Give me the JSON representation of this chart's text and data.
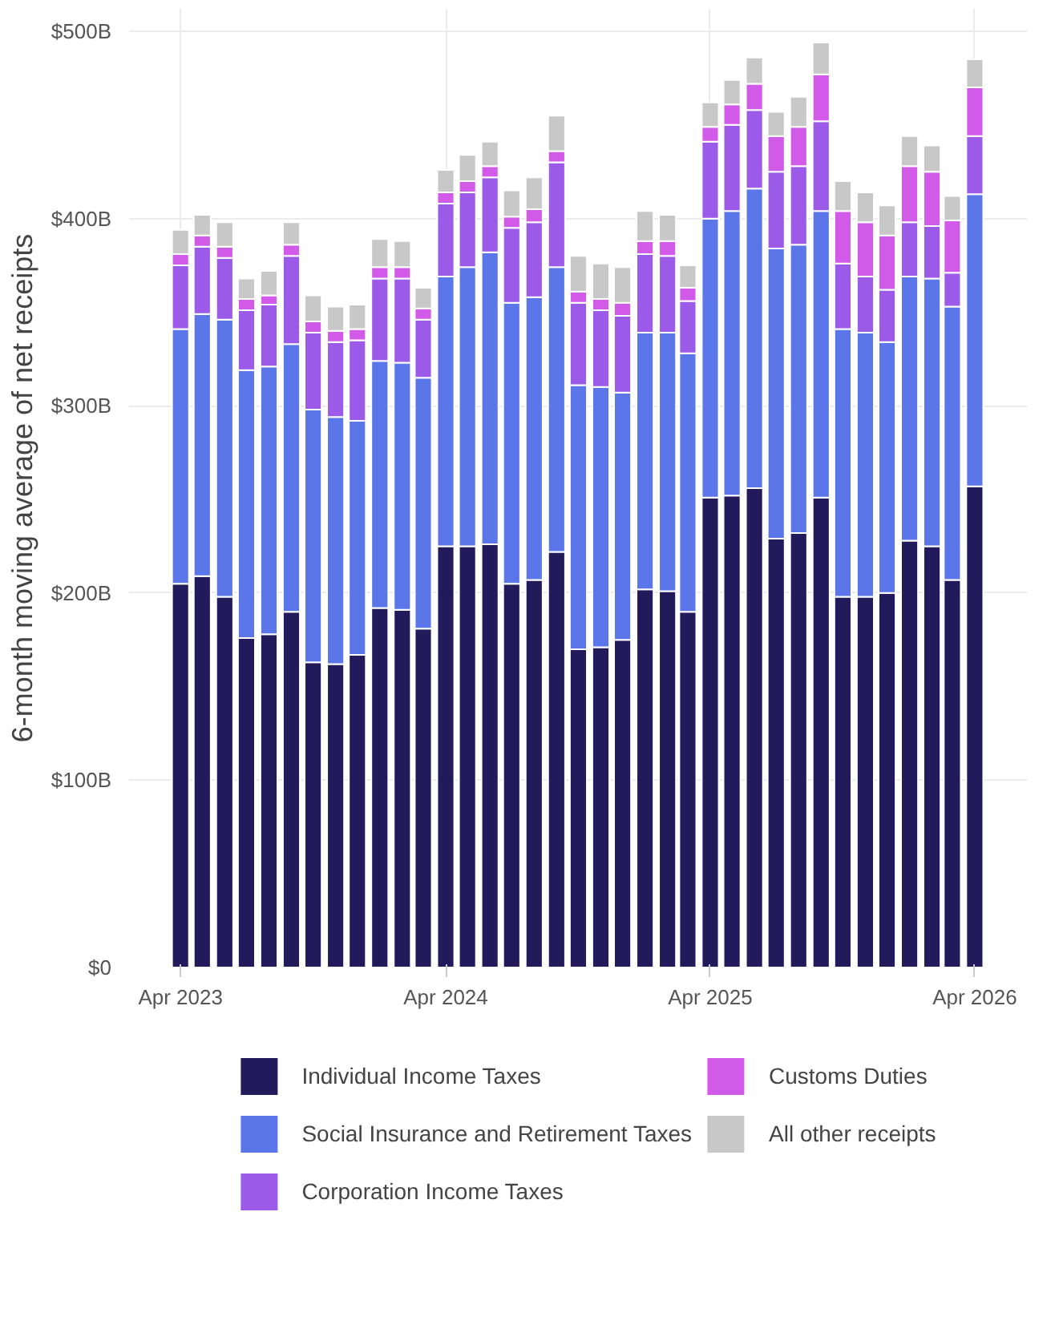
{
  "chart_data": {
    "type": "bar",
    "stacked": true,
    "ylabel": "6-month moving average of net receipts",
    "x": [
      "2023-04",
      "2023-05",
      "2023-06",
      "2023-07",
      "2023-08",
      "2023-09",
      "2023-10",
      "2023-11",
      "2023-12",
      "2024-01",
      "2024-02",
      "2024-03",
      "2024-04",
      "2024-05",
      "2024-06",
      "2024-07",
      "2024-08",
      "2024-09",
      "2024-10",
      "2024-11",
      "2024-12",
      "2025-01",
      "2025-02",
      "2025-03",
      "2025-04",
      "2025-05",
      "2025-06",
      "2025-07",
      "2025-08",
      "2025-09",
      "2025-10",
      "2025-11",
      "2025-12",
      "2026-01",
      "2026-02",
      "2026-03",
      "2026-04"
    ],
    "xlim": [
      "2023-01-20",
      "2026-06-12"
    ],
    "xticks": [
      {
        "value": "2023-04",
        "label": "Apr 2023"
      },
      {
        "value": "2024-04",
        "label": "Apr 2024"
      },
      {
        "value": "2025-04",
        "label": "Apr 2025"
      },
      {
        "value": "2026-04",
        "label": "Apr 2026"
      }
    ],
    "ylim": [
      0,
      512
    ],
    "yticks": [
      {
        "value": 0,
        "label": "$0"
      },
      {
        "value": 100,
        "label": "$100B"
      },
      {
        "value": 200,
        "label": "$200B"
      },
      {
        "value": 300,
        "label": "$300B"
      },
      {
        "value": 400,
        "label": "$400B"
      },
      {
        "value": 500,
        "label": "$500B"
      }
    ],
    "grid": true,
    "legend": "bottom",
    "series": [
      {
        "name": "Individual Income Taxes",
        "color": "#231a5c",
        "values": [
          205,
          209,
          198,
          176,
          178,
          190,
          163,
          162,
          167,
          192,
          191,
          181,
          225,
          225,
          226,
          205,
          207,
          222,
          170,
          171,
          175,
          202,
          201,
          190,
          251,
          252,
          256,
          229,
          232,
          251,
          198,
          198,
          200,
          228,
          225,
          207,
          257
        ]
      },
      {
        "name": "Social Insurance and Retirement Taxes",
        "color": "#5b76e8",
        "values": [
          136,
          140,
          148,
          143,
          143,
          143,
          135,
          132,
          125,
          132,
          132,
          134,
          144,
          149,
          156,
          150,
          151,
          152,
          141,
          139,
          132,
          137,
          138,
          138,
          149,
          152,
          160,
          155,
          154,
          153,
          143,
          141,
          134,
          141,
          143,
          146,
          156
        ]
      },
      {
        "name": "Corporation Income Taxes",
        "color": "#9b5ae8",
        "values": [
          34,
          36,
          33,
          32,
          33,
          47,
          41,
          40,
          43,
          44,
          45,
          31,
          39,
          40,
          40,
          40,
          40,
          56,
          44,
          41,
          41,
          42,
          41,
          28,
          41,
          46,
          42,
          41,
          42,
          48,
          35,
          30,
          28,
          29,
          28,
          18,
          31
        ]
      },
      {
        "name": "Customs Duties",
        "color": "#d25ae8",
        "values": [
          6,
          6,
          6,
          6,
          5,
          6,
          6,
          6,
          6,
          6,
          6,
          6,
          6,
          6,
          6,
          6,
          7,
          6,
          6,
          6,
          7,
          7,
          8,
          7,
          8,
          11,
          14,
          19,
          21,
          25,
          28,
          29,
          29,
          30,
          29,
          28,
          26
        ]
      },
      {
        "name": "All other receipts",
        "color": "#c8c8c8",
        "values": [
          13,
          11,
          13,
          11,
          13,
          12,
          14,
          13,
          13,
          15,
          14,
          11,
          12,
          14,
          13,
          14,
          17,
          19,
          19,
          19,
          19,
          16,
          14,
          12,
          13,
          13,
          14,
          13,
          16,
          17,
          16,
          16,
          16,
          16,
          14,
          13,
          15
        ]
      }
    ]
  }
}
